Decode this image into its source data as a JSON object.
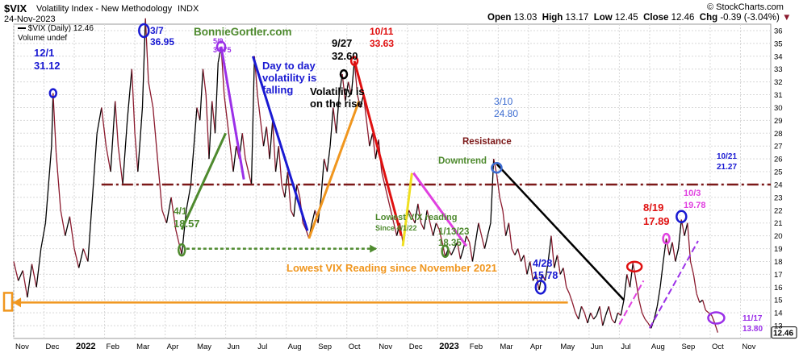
{
  "header": {
    "symbol": "$VIX",
    "name": "Volatility Index - New Methodology",
    "exchange": "INDX",
    "date": "24-Nov-2023",
    "credit": "© StockCharts.com",
    "open_label": "Open",
    "open": "13.03",
    "high_label": "High",
    "high": "13.17",
    "low_label": "Low",
    "low": "12.45",
    "close_label": "Close",
    "close": "12.46",
    "chg_label": "Chg",
    "chg": "-0.39 (-3.04%)",
    "legend_series": "$VIX (Daily) 12.46",
    "legend_sub": "Volume undef"
  },
  "colors": {
    "up_line": "#000000",
    "down_line": "#8b1a2e",
    "resistance": "#7b1818",
    "lowest": "#f0961e",
    "green": "#4e8a2e",
    "purple": "#9b30e8",
    "blue": "#1a1ad2",
    "orange": "#f0961e",
    "red": "#e01010",
    "yellow": "#f0e020",
    "magenta": "#e040e0",
    "black": "#000000"
  },
  "chart_data": {
    "type": "line",
    "title": "$VIX Volatility Index - New Methodology INDX",
    "ylim": [
      12,
      36.5
    ],
    "yticks": [
      13,
      14,
      15,
      16,
      17,
      18,
      19,
      20,
      21,
      22,
      23,
      24,
      25,
      26,
      27,
      28,
      29,
      30,
      31,
      32,
      33,
      34,
      35,
      36
    ],
    "x_labels": [
      "Nov",
      "Dec",
      "2022",
      "Feb",
      "Mar",
      "Apr",
      "May",
      "Jun",
      "Jul",
      "Aug",
      "Sep",
      "Oct",
      "Nov",
      "Dec",
      "2023",
      "Feb",
      "Mar",
      "Apr",
      "May",
      "Jun",
      "Jul",
      "Aug",
      "Sep",
      "Oct",
      "Nov"
    ],
    "x_range": [
      0,
      25
    ],
    "series": [
      {
        "points": [
          [
            0,
            18.0
          ],
          [
            0.15,
            16.5
          ],
          [
            0.3,
            17.3
          ],
          [
            0.45,
            15.2
          ],
          [
            0.6,
            17.8
          ],
          [
            0.75,
            16.0
          ],
          [
            0.9,
            19.0
          ],
          [
            1.05,
            21.0
          ],
          [
            1.15,
            24.0
          ],
          [
            1.25,
            27.0
          ],
          [
            1.3,
            31.12
          ],
          [
            1.4,
            26.5
          ],
          [
            1.55,
            22.0
          ],
          [
            1.7,
            20.0
          ],
          [
            1.85,
            21.5
          ],
          [
            2.0,
            19.0
          ],
          [
            2.15,
            17.5
          ],
          [
            2.3,
            19.0
          ],
          [
            2.45,
            18.0
          ],
          [
            2.6,
            23.0
          ],
          [
            2.75,
            28.0
          ],
          [
            2.9,
            30.0
          ],
          [
            3.05,
            27.0
          ],
          [
            3.2,
            25.0
          ],
          [
            3.35,
            30.5
          ],
          [
            3.45,
            27.0
          ],
          [
            3.6,
            24.0
          ],
          [
            3.75,
            29.0
          ],
          [
            3.9,
            33.0
          ],
          [
            4.0,
            28.0
          ],
          [
            4.1,
            25.0
          ],
          [
            4.25,
            30.0
          ],
          [
            4.35,
            36.95
          ],
          [
            4.45,
            32.0
          ],
          [
            4.6,
            30.0
          ],
          [
            4.75,
            26.0
          ],
          [
            4.9,
            22.0
          ],
          [
            5.05,
            21.0
          ],
          [
            5.2,
            23.0
          ],
          [
            5.35,
            20.5
          ],
          [
            5.45,
            19.5
          ],
          [
            5.55,
            18.57
          ],
          [
            5.7,
            22.0
          ],
          [
            5.85,
            24.0
          ],
          [
            5.95,
            27.0
          ],
          [
            6.05,
            30.0
          ],
          [
            6.15,
            29.0
          ],
          [
            6.25,
            33.0
          ],
          [
            6.35,
            31.0
          ],
          [
            6.45,
            26.0
          ],
          [
            6.55,
            30.5
          ],
          [
            6.65,
            28.0
          ],
          [
            6.75,
            33.5
          ],
          [
            6.85,
            34.75
          ],
          [
            6.95,
            31.0
          ],
          [
            7.05,
            29.0
          ],
          [
            7.15,
            27.0
          ],
          [
            7.25,
            25.0
          ],
          [
            7.35,
            27.0
          ],
          [
            7.45,
            26.0
          ],
          [
            7.55,
            28.0
          ],
          [
            7.65,
            26.0
          ],
          [
            7.75,
            25.0
          ],
          [
            7.85,
            24.0
          ],
          [
            7.95,
            34.0
          ],
          [
            8.05,
            31.0
          ],
          [
            8.15,
            29.0
          ],
          [
            8.25,
            27.0
          ],
          [
            8.35,
            28.5
          ],
          [
            8.45,
            26.0
          ],
          [
            8.55,
            29.0
          ],
          [
            8.65,
            25.0
          ],
          [
            8.75,
            27.0
          ],
          [
            8.85,
            24.0
          ],
          [
            8.95,
            23.0
          ],
          [
            9.05,
            25.0
          ],
          [
            9.15,
            22.0
          ],
          [
            9.25,
            21.5
          ],
          [
            9.35,
            24.0
          ],
          [
            9.45,
            23.0
          ],
          [
            9.55,
            21.0
          ],
          [
            9.65,
            20.5
          ],
          [
            9.75,
            19.8
          ],
          [
            9.85,
            21.0
          ],
          [
            9.95,
            22.0
          ],
          [
            10.05,
            21.0
          ],
          [
            10.15,
            23.0
          ],
          [
            10.25,
            26.0
          ],
          [
            10.35,
            25.0
          ],
          [
            10.45,
            27.0
          ],
          [
            10.55,
            30.0
          ],
          [
            10.65,
            28.0
          ],
          [
            10.75,
            31.0
          ],
          [
            10.85,
            32.6
          ],
          [
            10.95,
            30.5
          ],
          [
            11.05,
            32.0
          ],
          [
            11.15,
            31.0
          ],
          [
            11.25,
            33.63
          ],
          [
            11.35,
            31.0
          ],
          [
            11.45,
            30.0
          ],
          [
            11.55,
            31.0
          ],
          [
            11.65,
            29.0
          ],
          [
            11.75,
            27.0
          ],
          [
            11.85,
            28.0
          ],
          [
            11.95,
            26.0
          ],
          [
            12.05,
            27.5
          ],
          [
            12.15,
            25.0
          ],
          [
            12.25,
            24.0
          ],
          [
            12.35,
            23.0
          ],
          [
            12.45,
            22.0
          ],
          [
            12.55,
            21.0
          ],
          [
            12.65,
            20.0
          ],
          [
            12.75,
            21.0
          ],
          [
            12.85,
            19.5
          ],
          [
            12.95,
            21.0
          ],
          [
            13.05,
            22.0
          ],
          [
            13.15,
            21.5
          ],
          [
            13.25,
            21.0
          ],
          [
            13.35,
            22.5
          ],
          [
            13.45,
            21.0
          ],
          [
            13.55,
            20.5
          ],
          [
            13.65,
            22.0
          ],
          [
            13.75,
            21.0
          ],
          [
            13.85,
            20.0
          ],
          [
            13.95,
            21.0
          ],
          [
            14.05,
            20.5
          ],
          [
            14.15,
            19.5
          ],
          [
            14.25,
            18.35
          ],
          [
            14.35,
            19.0
          ],
          [
            14.45,
            18.5
          ],
          [
            14.55,
            19.0
          ],
          [
            14.65,
            19.5
          ],
          [
            14.75,
            18.2
          ],
          [
            14.85,
            19.0
          ],
          [
            14.95,
            20.0
          ],
          [
            15.05,
            19.5
          ],
          [
            15.15,
            18.0
          ],
          [
            15.25,
            19.5
          ],
          [
            15.35,
            21.0
          ],
          [
            15.45,
            20.0
          ],
          [
            15.55,
            19.0
          ],
          [
            15.65,
            20.0
          ],
          [
            15.75,
            21.0
          ],
          [
            15.85,
            26.0
          ],
          [
            15.95,
            24.8
          ],
          [
            16.05,
            23.0
          ],
          [
            16.15,
            22.0
          ],
          [
            16.25,
            20.0
          ],
          [
            16.35,
            21.0
          ],
          [
            16.45,
            19.0
          ],
          [
            16.55,
            18.5
          ],
          [
            16.65,
            19.0
          ],
          [
            16.75,
            18.0
          ],
          [
            16.85,
            18.5
          ],
          [
            16.95,
            17.0
          ],
          [
            17.05,
            18.0
          ],
          [
            17.15,
            16.5
          ],
          [
            17.25,
            17.0
          ],
          [
            17.35,
            15.78
          ],
          [
            17.45,
            17.0
          ],
          [
            17.55,
            16.5
          ],
          [
            17.65,
            18.0
          ],
          [
            17.75,
            20.0
          ],
          [
            17.85,
            17.5
          ],
          [
            17.95,
            18.5
          ],
          [
            18.05,
            17.0
          ],
          [
            18.15,
            17.5
          ],
          [
            18.25,
            16.0
          ],
          [
            18.35,
            15.5
          ],
          [
            18.45,
            14.8
          ],
          [
            18.55,
            14.0
          ],
          [
            18.65,
            13.5
          ],
          [
            18.75,
            14.5
          ],
          [
            18.85,
            14.0
          ],
          [
            18.95,
            13.2
          ],
          [
            19.05,
            14.0
          ],
          [
            19.15,
            13.5
          ],
          [
            19.25,
            13.8
          ],
          [
            19.35,
            14.5
          ],
          [
            19.45,
            13.0
          ],
          [
            19.55,
            13.8
          ],
          [
            19.65,
            14.5
          ],
          [
            19.75,
            13.5
          ],
          [
            19.85,
            13.2
          ],
          [
            19.95,
            14.0
          ],
          [
            20.05,
            13.8
          ],
          [
            20.15,
            15.0
          ],
          [
            20.25,
            17.0
          ],
          [
            20.35,
            16.0
          ],
          [
            20.45,
            17.89
          ],
          [
            20.55,
            16.5
          ],
          [
            20.65,
            15.0
          ],
          [
            20.75,
            14.0
          ],
          [
            20.85,
            13.5
          ],
          [
            20.95,
            13.2
          ],
          [
            21.05,
            12.8
          ],
          [
            21.15,
            13.5
          ],
          [
            21.25,
            14.5
          ],
          [
            21.35,
            16.0
          ],
          [
            21.45,
            18.0
          ],
          [
            21.55,
            19.78
          ],
          [
            21.65,
            18.5
          ],
          [
            21.75,
            19.5
          ],
          [
            21.85,
            18.0
          ],
          [
            21.95,
            19.0
          ],
          [
            22.05,
            21.27
          ],
          [
            22.15,
            20.0
          ],
          [
            22.25,
            21.0
          ],
          [
            22.35,
            18.0
          ],
          [
            22.45,
            17.0
          ],
          [
            22.55,
            15.5
          ],
          [
            22.65,
            14.8
          ],
          [
            22.75,
            15.0
          ],
          [
            22.85,
            14.2
          ],
          [
            22.95,
            14.0
          ],
          [
            23.05,
            13.8
          ],
          [
            23.15,
            13.2
          ],
          [
            23.25,
            12.46
          ]
        ]
      }
    ],
    "resistance_level": 24.0,
    "lowest_level": 14.8
  },
  "annotations": {
    "dec1_date": "12/1",
    "dec1_val": "31.12",
    "mar7_date": "3/7",
    "mar7_val": "36.95",
    "site": "BonnieGortler.com",
    "may9_date": "5/9",
    "may9_val": "34.75",
    "day_to_day": [
      "Day to day",
      "volatility is",
      "falling"
    ],
    "sep27_date": "9/27",
    "sep27_val": "32.60",
    "oct11_date": "10/11",
    "oct11_val": "33.63",
    "volatility_rise": [
      "Volatility is",
      "on the rise"
    ],
    "mar10_date": "3/10",
    "mar10_val": "24.80",
    "resistance": "Resistance",
    "downtrend": "Downtrend",
    "apr1_date": "4/1",
    "apr1_val": "18.57",
    "lowest_since": [
      "Lowest VIX reading",
      "Since 4/1/22"
    ],
    "jan13_date": "1/13/23",
    "jan13_val": "18.35",
    "lowest_nov": "Lowest VIX Reading since November 2021",
    "apr28_date": "4/28",
    "apr28_val": "15.78",
    "aug19_date": "8/19",
    "aug19_val": "17.89",
    "oct3_date": "10/3",
    "oct3_val": "19.78",
    "oct21_date": "10/21",
    "oct21_val": "21.27",
    "nov17_date": "11/17",
    "nov17_val": "13.80",
    "last_price": "12.46"
  }
}
